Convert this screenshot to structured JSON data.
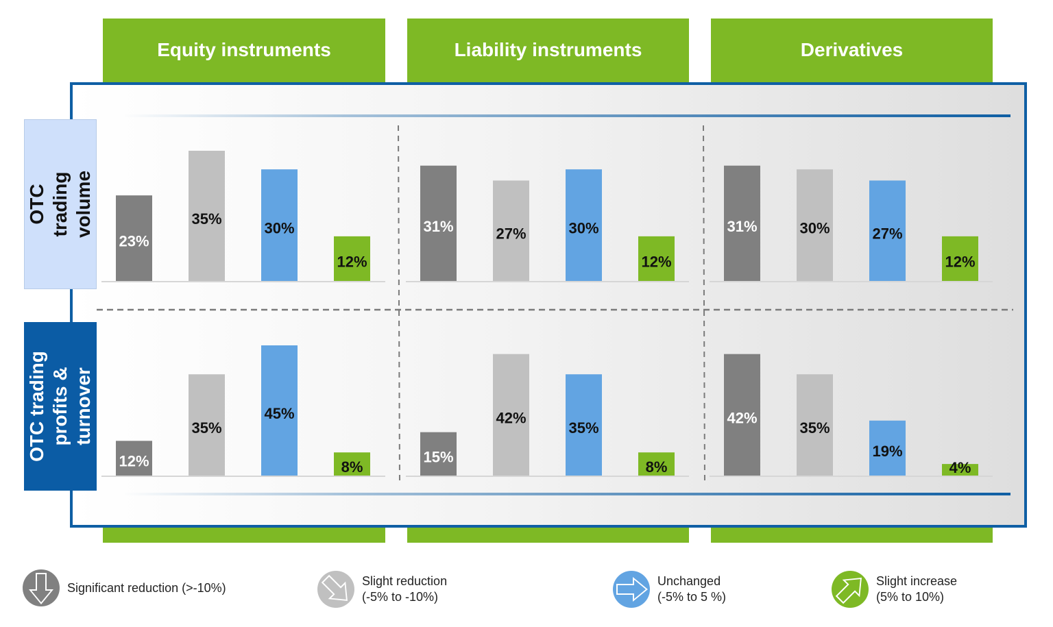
{
  "columns": [
    "Equity instruments",
    "Liability instruments",
    "Derivatives"
  ],
  "rows": [
    "OTC trading volume",
    "OTC trading\nprofits &\nturnover"
  ],
  "colors": {
    "significant_reduction": "#808080",
    "slight_reduction": "#c0c0c0",
    "unchanged": "#62a4e2",
    "slight_increase": "#7eb925",
    "header_green": "#7eb925",
    "frame_blue": "#0f5fa4"
  },
  "legend": [
    {
      "label": "Significant reduction (>-10%)",
      "icon": "down-arrow-icon",
      "color": "#808080"
    },
    {
      "label": "Slight reduction\n(-5% to -10%)",
      "icon": "down-right-arrow-icon",
      "color": "#c0c0c0"
    },
    {
      "label": "Unchanged\n(-5% to 5 %)",
      "icon": "right-arrow-icon",
      "color": "#62a4e2"
    },
    {
      "label": "Slight increase\n(5% to 10%)",
      "icon": "up-right-arrow-icon",
      "color": "#7eb925"
    }
  ],
  "chart_data": {
    "type": "bar",
    "unit": "%",
    "series": [
      {
        "name": "Significant reduction (>-10%)",
        "color": "#808080"
      },
      {
        "name": "Slight reduction (-5% to -10%)",
        "color": "#c0c0c0"
      },
      {
        "name": "Unchanged (-5% to 5 %)",
        "color": "#62a4e2"
      },
      {
        "name": "Slight increase (5% to 10%)",
        "color": "#7eb925"
      }
    ],
    "panels": [
      {
        "row": "OTC trading volume",
        "column": "Equity instruments",
        "values": [
          23,
          35,
          30,
          12
        ]
      },
      {
        "row": "OTC trading volume",
        "column": "Liability instruments",
        "values": [
          31,
          27,
          30,
          12
        ]
      },
      {
        "row": "OTC trading volume",
        "column": "Derivatives",
        "values": [
          31,
          30,
          27,
          12
        ]
      },
      {
        "row": "OTC trading profits & turnover",
        "column": "Equity instruments",
        "values": [
          12,
          35,
          45,
          8
        ]
      },
      {
        "row": "OTC trading profits & turnover",
        "column": "Liability instruments",
        "values": [
          15,
          42,
          35,
          8
        ]
      },
      {
        "row": "OTC trading profits & turnover",
        "column": "Derivatives",
        "values": [
          42,
          35,
          19,
          4
        ]
      }
    ],
    "grid": false,
    "legend_position": "bottom"
  }
}
